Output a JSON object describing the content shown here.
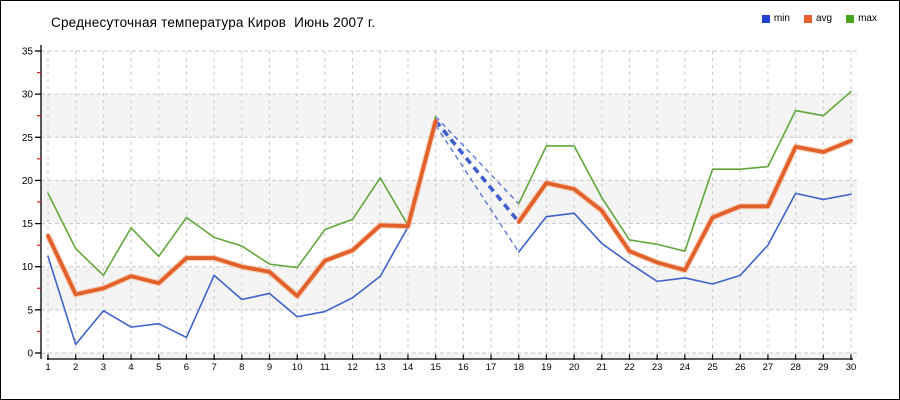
{
  "window": {
    "kind": "weather-chart-image",
    "background": "#ffffff",
    "border_color": "#000000"
  },
  "title": "Среднесуточная температура Киров  Июнь 2007 г.",
  "legend": [
    {
      "label": "min",
      "color": "#2343d7"
    },
    {
      "label": "avg",
      "color": "#e8622a"
    },
    {
      "label": "max",
      "color": "#46a41c"
    }
  ],
  "chart_data": {
    "type": "line",
    "title": "Среднесуточная температура Киров  Июнь 2007 г.",
    "x": [
      1,
      2,
      3,
      4,
      5,
      6,
      7,
      8,
      9,
      10,
      11,
      12,
      13,
      14,
      15,
      16,
      17,
      18,
      19,
      20,
      21,
      22,
      23,
      24,
      25,
      26,
      27,
      28,
      29,
      30
    ],
    "x_tick_labels": [
      "1",
      "2",
      "3",
      "4",
      "5",
      "6",
      "7",
      "8",
      "9",
      "10",
      "11",
      "12",
      "13",
      "14",
      "15",
      "16",
      "17",
      "18",
      "19",
      "20",
      "21",
      "22",
      "23",
      "24",
      "25",
      "26",
      "27",
      "28",
      "29",
      "30"
    ],
    "ylim": [
      0,
      35
    ],
    "ytick_step": 5,
    "yminor_step": 2.5,
    "y_tick_labels": [
      "0",
      "5",
      "10",
      "15",
      "20",
      "25",
      "30",
      "35"
    ],
    "grid": "dashed-gray-both-axes",
    "band_fill_ranges": [
      [
        5,
        10
      ],
      [
        15,
        20
      ],
      [
        25,
        30
      ]
    ],
    "band_color": "#f4f4f4",
    "legend_position": "top-right",
    "missing_data_days": [
      16,
      17
    ],
    "missing_data_style": {
      "stroke": "#3e5ecf",
      "dash": true,
      "note": "blue dashed interpolation between day 15 and day 18"
    },
    "series": [
      {
        "name": "min",
        "color": "#3f63c8",
        "width": 1.6,
        "values": [
          11.2,
          1.0,
          4.9,
          3.0,
          3.4,
          1.8,
          9.0,
          6.2,
          6.9,
          4.2,
          4.8,
          6.4,
          8.9,
          14.6,
          26.4,
          null,
          null,
          11.7,
          15.8,
          16.2,
          12.7,
          10.4,
          8.3,
          8.7,
          8.0,
          9.0,
          12.5,
          18.5,
          17.8,
          18.4
        ]
      },
      {
        "name": "avg",
        "color": "#e2602a",
        "halo": "#f5b187",
        "width": 3.8,
        "values": [
          13.6,
          6.8,
          7.5,
          8.9,
          8.1,
          11.0,
          11.0,
          10.0,
          9.4,
          6.6,
          10.7,
          11.9,
          14.8,
          14.7,
          26.9,
          null,
          null,
          15.2,
          19.7,
          19.0,
          16.5,
          11.8,
          10.5,
          9.6,
          15.7,
          17.0,
          17.0,
          23.9,
          23.3,
          24.6
        ]
      },
      {
        "name": "max",
        "color": "#61a73c",
        "width": 1.6,
        "values": [
          18.5,
          12.1,
          9.0,
          14.5,
          11.2,
          15.7,
          13.4,
          12.4,
          10.3,
          9.9,
          14.3,
          15.5,
          20.3,
          14.8,
          27.4,
          null,
          null,
          17.3,
          24.0,
          24.0,
          18.0,
          13.1,
          12.6,
          11.8,
          21.3,
          21.3,
          21.6,
          28.1,
          27.5,
          30.3
        ]
      }
    ],
    "axis_colors": {
      "axis_line": "#000000",
      "major_tick": "#000000",
      "minor_tick": "#cc2222",
      "grid": "#c9c9c9"
    }
  }
}
